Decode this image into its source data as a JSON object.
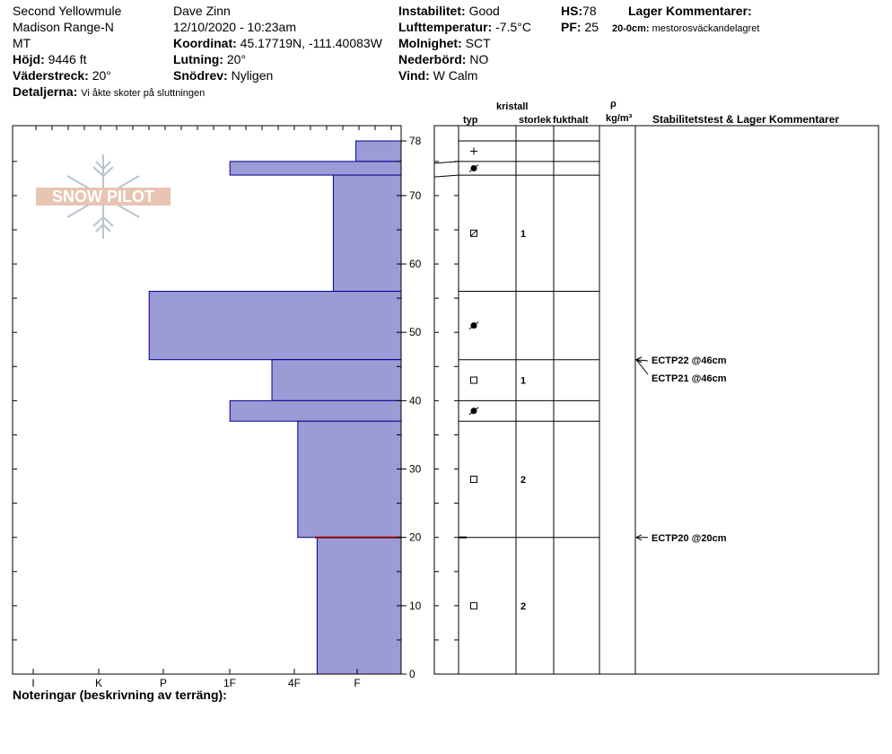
{
  "header": {
    "location_line1": "Second Yellowmule",
    "location_line2": "Madison Range-N",
    "location_line3": "MT",
    "elevation_label": "Höjd:",
    "elevation_value": "9446 ft",
    "aspect_label": "Väderstreck:",
    "aspect_value": "20°",
    "details_label": "Detaljerna:",
    "details_value": "Vi åkte skoter på sluttningen",
    "observer": "Dave Zinn",
    "datetime": "12/10/2020 - 10:23am",
    "coord_label": "Koordinat:",
    "coord_value": "45.17719N, -111.40083W",
    "slope_label": "Lutning:",
    "slope_value": "20°",
    "drift_label": "Snödrev:",
    "drift_value": "Nyligen",
    "instability_label": "Instabilitet:",
    "instability_value": "Good",
    "airtemp_label": "Lufttemperatur:",
    "airtemp_value": "-7.5°C",
    "cloud_label": "Molnighet:",
    "cloud_value": "SCT",
    "precip_label": "Nederbörd:",
    "precip_value": "NO",
    "wind_label": "Vind:",
    "wind_value": "W Calm",
    "hs_label": "HS:",
    "hs_value": "78",
    "pf_label": "PF:",
    "pf_value": "25",
    "layer_comments_title": "Lager Kommentarer:",
    "layer_comment_depth": "20-0cm:",
    "layer_comment_text": "mestorosväckandelagret"
  },
  "logo": {
    "text": "SNOW PILOT"
  },
  "columns": {
    "typ": "typ",
    "kristall": "kristall",
    "storlek": "storlek",
    "fukthalt": "fukthalt",
    "rho": "ρ",
    "density_unit": "kg/m³",
    "stability": "Stabilitetstest & Lager Kommentarer"
  },
  "notes_label": "Noteringar (beskrivning av terräng):",
  "colors": {
    "bar_fill": "#9b9bd6",
    "bar_stroke": "#00008b",
    "marker": "#8b0000"
  },
  "chart_data": {
    "type": "bar",
    "ylim": [
      0,
      78
    ],
    "yticks": [
      "0",
      "10",
      "20",
      "30",
      "40",
      "50",
      "60",
      "70",
      "78"
    ],
    "hardness_categories": [
      "I",
      "K",
      "P",
      "1F",
      "4F",
      "F"
    ],
    "layers": [
      {
        "top": 78,
        "bottom": 75,
        "hardness": 0.7,
        "symbol": "+",
        "size": ""
      },
      {
        "top": 75,
        "bottom": 73,
        "hardness": 2.65,
        "symbol": "rounding-faceted",
        "size": ""
      },
      {
        "top": 73,
        "bottom": 56,
        "hardness": 1.05,
        "symbol": "mixed",
        "size": "1"
      },
      {
        "top": 56,
        "bottom": 46,
        "hardness": 3.9,
        "symbol": "rounding-faceted",
        "size": ""
      },
      {
        "top": 46,
        "bottom": 40,
        "hardness": 2.0,
        "symbol": "square",
        "size": "1"
      },
      {
        "top": 40,
        "bottom": 37,
        "hardness": 2.65,
        "symbol": "rounding-faceted",
        "size": ""
      },
      {
        "top": 37,
        "bottom": 20,
        "hardness": 1.6,
        "symbol": "square",
        "size": "2"
      },
      {
        "top": 20,
        "bottom": 0,
        "hardness": 1.3,
        "symbol": "square",
        "size": "2"
      }
    ],
    "tests": [
      {
        "depth": 46,
        "label": "ECTP22 @46cm"
      },
      {
        "depth": 46,
        "label": "ECTP21 @46cm"
      },
      {
        "depth": 20,
        "label": "ECTP20 @20cm"
      }
    ],
    "marked_layer_depth": 20
  }
}
